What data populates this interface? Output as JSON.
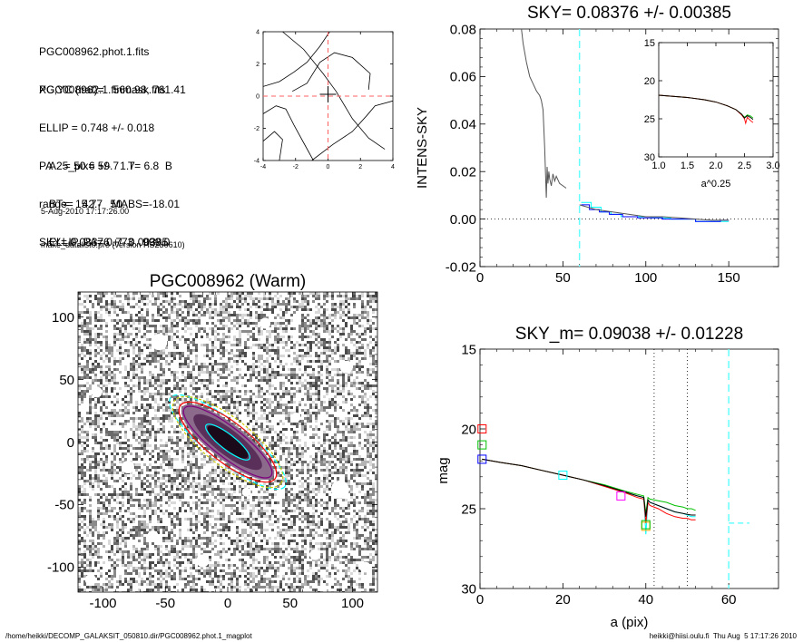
{
  "header_block": {
    "files": [
      "PGC008962.phot.1.fits",
      "PGC008962.1.finmask.fits"
    ],
    "params": [
      "XC,YC (iraf)=   560.98, 761.41",
      "ELLIP = 0.748 +/- 0.018",
      "PA    = 50.6 +/-   1.7",
      "range=   42.-   50.",
      "SKY= 0.08376 +/- 0.00385"
    ],
    "derived": [
      "A25_pix= 59.7   T= 6.8  B",
      "BT=  15.77   MABS=-18.01",
      "ELLIP, PA= 0.773   999.0"
    ],
    "meta": [
      "5-Aug-2010 17:17:26.00",
      "make_datalist0.pro (version HS230610)"
    ]
  },
  "footer": {
    "left": "/home/heikki/DECOMP_GALAKSIT_050810.dir/PGC008962.phot.1_magplot",
    "right": "heikki@hiisi.oulu.fi  Thu Aug  5 17:17:26 2010"
  },
  "colors": {
    "axis": "#000000",
    "cyan": "#00ffff",
    "red": "#ff0000",
    "green": "#00c000",
    "blue": "#0000ff",
    "magenta": "#ff00ff",
    "gray": "#555555"
  },
  "chart_data": [
    {
      "id": "contour",
      "type": "line",
      "xlim": [
        -4,
        4
      ],
      "ylim": [
        -4,
        4
      ],
      "xticks": [
        -4,
        -2,
        0,
        2,
        4
      ],
      "yticks": [
        -4,
        -2,
        0,
        2,
        4
      ],
      "crosshair": [
        0,
        0
      ],
      "contours": [
        [
          [
            -2.8,
            4.0
          ],
          [
            -1.5,
            2.9
          ],
          [
            -0.3,
            1.4
          ],
          [
            0.5,
            0.3
          ],
          [
            1.5,
            -1.4
          ],
          [
            2.5,
            -2.6
          ],
          [
            3.5,
            -3.3
          ]
        ],
        [
          [
            -4.0,
            0.6
          ],
          [
            -3.0,
            0.9
          ],
          [
            -2.1,
            1.5
          ],
          [
            -1.3,
            2.1
          ],
          [
            -0.5,
            3.1
          ],
          [
            0.1,
            4.0
          ]
        ],
        [
          [
            -1.0,
            -4.0
          ],
          [
            0.3,
            -3.0
          ],
          [
            1.5,
            -2.2
          ],
          [
            2.4,
            -1.2
          ],
          [
            2.9,
            -0.6
          ],
          [
            4.0,
            -0.3
          ]
        ],
        [
          [
            -2.2,
            0.3
          ],
          [
            -1.3,
            0.8
          ],
          [
            -0.5,
            2.1
          ],
          [
            0.4,
            2.7
          ],
          [
            1.5,
            2.4
          ],
          [
            2.6,
            1.4
          ],
          [
            2.5,
            0.4
          ]
        ],
        [
          [
            -4.0,
            -1.1
          ],
          [
            -3.2,
            -0.6
          ],
          [
            -2.6,
            -0.8
          ],
          [
            -2.1,
            -1.8
          ],
          [
            -1.5,
            -2.9
          ],
          [
            -0.9,
            -4.0
          ]
        ],
        [
          [
            -4.0,
            -2.8
          ],
          [
            -3.3,
            -2.2
          ],
          [
            -2.8,
            -2.7
          ],
          [
            -3.0,
            -4.0
          ]
        ]
      ]
    },
    {
      "id": "sky",
      "type": "line",
      "title": "SKY= 0.08376 +/- 0.00385",
      "ylabel": "INTENS-SKY",
      "xlim": [
        0,
        180
      ],
      "ylim": [
        -0.02,
        0.08
      ],
      "xticks": [
        0,
        50,
        100,
        150
      ],
      "yticks": [
        -0.02,
        0.0,
        0.02,
        0.04,
        0.06,
        0.08
      ],
      "ytick_labels": [
        "-0.02",
        "0.00",
        "0.02",
        "0.04",
        "0.06",
        "0.08"
      ],
      "zero_line": 0,
      "vline_cyan": 60,
      "series": [
        {
          "color": "#555555",
          "x": [
            25,
            26,
            28,
            30,
            32,
            34,
            36,
            37,
            38,
            39,
            40,
            40.5,
            41,
            41.5,
            42,
            43,
            44,
            45,
            46,
            48,
            50,
            52
          ],
          "y": [
            0.08,
            0.074,
            0.066,
            0.06,
            0.057,
            0.054,
            0.052,
            0.05,
            0.046,
            0.03,
            0.009,
            0.022,
            0.015,
            0.02,
            0.017,
            0.014,
            0.019,
            0.016,
            0.018,
            0.015,
            0.014,
            0.013
          ]
        },
        {
          "color": "#00ffff",
          "x": [
            61,
            67,
            67,
            73,
            73,
            79,
            79,
            85,
            85,
            93,
            93,
            103,
            103,
            115,
            115,
            130,
            130,
            150
          ],
          "y": [
            0.007,
            0.007,
            0.005,
            0.005,
            0.003,
            0.003,
            0.002,
            0.002,
            0.001,
            0.001,
            0.001,
            0.001,
            0.0005,
            0.0005,
            0.0,
            0.0,
            -0.001,
            -0.001
          ]
        },
        {
          "color": "#0000ff",
          "x": [
            61,
            66,
            66,
            72,
            72,
            78,
            78,
            86,
            86,
            95,
            95,
            110,
            110,
            130,
            130,
            145,
            145,
            150
          ],
          "y": [
            0.006,
            0.006,
            0.004,
            0.004,
            0.003,
            0.003,
            0.002,
            0.002,
            0.001,
            0.001,
            0.0005,
            0.0005,
            0.0,
            0.0,
            -0.001,
            -0.001,
            -0.0005,
            -0.0005
          ]
        },
        {
          "color": "#555555",
          "x": [
            60,
            70,
            80,
            90,
            100,
            110,
            120,
            130,
            140,
            150
          ],
          "y": [
            0.006,
            0.004,
            0.003,
            0.002,
            0.001,
            0.001,
            0.0005,
            0.0,
            -0.0005,
            -0.0005
          ]
        }
      ]
    },
    {
      "id": "inset",
      "type": "line",
      "xlabel": "a^0.25",
      "xlim": [
        1.0,
        3.0
      ],
      "ylim": [
        30,
        15
      ],
      "xticks": [
        1.0,
        1.5,
        2.0,
        2.5,
        3.0
      ],
      "yticks": [
        15,
        20,
        25,
        30
      ],
      "xtick_labels": [
        "1.0",
        "1.5",
        "2.0",
        "2.5",
        "3.0"
      ],
      "series": [
        {
          "color": "#00c000",
          "x": [
            1.0,
            1.5,
            1.8,
            2.0,
            2.2,
            2.35,
            2.45,
            2.5,
            2.55,
            2.6,
            2.65
          ],
          "y": [
            21.9,
            22.2,
            22.5,
            22.8,
            23.3,
            23.8,
            24.4,
            24.8,
            24.5,
            24.6,
            24.9
          ]
        },
        {
          "color": "#ff0000",
          "x": [
            1.0,
            1.5,
            1.8,
            2.0,
            2.2,
            2.35,
            2.45,
            2.5,
            2.52,
            2.55,
            2.6,
            2.65
          ],
          "y": [
            21.9,
            22.2,
            22.5,
            22.8,
            23.3,
            23.8,
            24.5,
            25.0,
            25.6,
            24.8,
            25.2,
            25.5
          ]
        },
        {
          "color": "#000000",
          "x": [
            1.0,
            1.5,
            1.8,
            2.0,
            2.2,
            2.35,
            2.45,
            2.5,
            2.55,
            2.6,
            2.65
          ],
          "y": [
            21.9,
            22.2,
            22.5,
            22.8,
            23.3,
            23.8,
            24.4,
            24.9,
            24.6,
            24.8,
            25.1
          ]
        }
      ]
    },
    {
      "id": "image",
      "type": "heatmap",
      "title": "PGC008962 (Warm)",
      "xlim": [
        -120,
        120
      ],
      "ylim": [
        -120,
        120
      ],
      "xticks": [
        -100,
        -50,
        0,
        50,
        100
      ],
      "yticks": [
        -100,
        -50,
        0,
        50,
        100
      ],
      "ellipse_pa": 38,
      "ellipses": [
        {
          "color": "#00ffff",
          "a": 58,
          "b": 16
        },
        {
          "color": "#c8c800",
          "a": 54,
          "b": 19
        },
        {
          "color": "#ff0000",
          "a": 48,
          "b": 16
        },
        {
          "color": "#7f007f",
          "a": 44,
          "b": 12
        },
        {
          "color": "#00ffff",
          "a": 22,
          "b": 6
        }
      ]
    },
    {
      "id": "mag",
      "type": "line",
      "title": "SKY_m=  0.09038 +/- 0.01228",
      "xlabel": "a (pix)",
      "ylabel": "mag",
      "xlim": [
        0,
        72
      ],
      "ylim": [
        30,
        15
      ],
      "xticks": [
        0,
        20,
        40,
        60
      ],
      "yticks": [
        15,
        20,
        25,
        30
      ],
      "vlines_dotted": [
        42,
        50
      ],
      "vline_cyan": 60,
      "cyan_tail": {
        "x": [
          60,
          65
        ],
        "y": [
          25.9,
          25.9
        ]
      },
      "markers": [
        {
          "color": "#ff0000",
          "x": 0.5,
          "y": 20.0
        },
        {
          "color": "#00c000",
          "x": 0.5,
          "y": 21.0
        },
        {
          "color": "#0000ff",
          "x": 0.5,
          "y": 21.9
        },
        {
          "color": "#00ffff",
          "x": 20.0,
          "y": 22.9
        },
        {
          "color": "#ff00ff",
          "x": 34.0,
          "y": 24.2
        },
        {
          "color": "#ffaa00",
          "x": 40.0,
          "y": 26.1
        },
        {
          "color": "#00c000",
          "x": 40.0,
          "y": 26.0
        }
      ],
      "series": [
        {
          "color": "#00ffff",
          "x": [
            0.5,
            5,
            10,
            15,
            20,
            25,
            30,
            35,
            38,
            39.5,
            40,
            40.5,
            41,
            43,
            45,
            47,
            49,
            50,
            51,
            52
          ],
          "y": [
            21.9,
            22.1,
            22.3,
            22.6,
            22.9,
            23.2,
            23.6,
            24.0,
            24.2,
            24.3,
            26.6,
            24.5,
            24.6,
            24.8,
            25.0,
            25.2,
            25.3,
            25.4,
            25.5,
            25.5
          ]
        },
        {
          "color": "#00c000",
          "x": [
            0.5,
            5,
            10,
            15,
            20,
            25,
            30,
            35,
            38,
            39.5,
            40,
            40.5,
            41,
            43,
            45,
            47,
            49,
            50,
            51,
            52
          ],
          "y": [
            21.9,
            22.1,
            22.3,
            22.6,
            22.9,
            23.2,
            23.5,
            23.9,
            24.1,
            24.2,
            25.3,
            24.3,
            24.4,
            24.5,
            24.6,
            24.8,
            24.9,
            25.0,
            25.0,
            25.1
          ]
        },
        {
          "color": "#ff0000",
          "x": [
            0.5,
            5,
            10,
            15,
            20,
            25,
            30,
            35,
            38,
            39.5,
            40,
            40.5,
            41,
            43,
            45,
            47,
            49,
            50,
            51,
            52
          ],
          "y": [
            21.9,
            22.1,
            22.3,
            22.6,
            22.9,
            23.2,
            23.6,
            24.0,
            24.3,
            24.4,
            25.9,
            24.6,
            24.8,
            25.0,
            25.3,
            25.5,
            25.6,
            25.6,
            25.7,
            25.7
          ]
        },
        {
          "color": "#000000",
          "x": [
            0.5,
            5,
            10,
            15,
            20,
            25,
            30,
            35,
            38,
            39.5,
            40,
            40.5,
            41,
            43,
            45,
            47,
            49,
            50,
            51,
            52
          ],
          "y": [
            21.9,
            22.1,
            22.3,
            22.6,
            22.9,
            23.2,
            23.55,
            23.95,
            24.2,
            24.3,
            25.5,
            24.45,
            24.6,
            24.8,
            25.0,
            25.2,
            25.3,
            25.35,
            25.4,
            25.4
          ]
        }
      ]
    }
  ]
}
